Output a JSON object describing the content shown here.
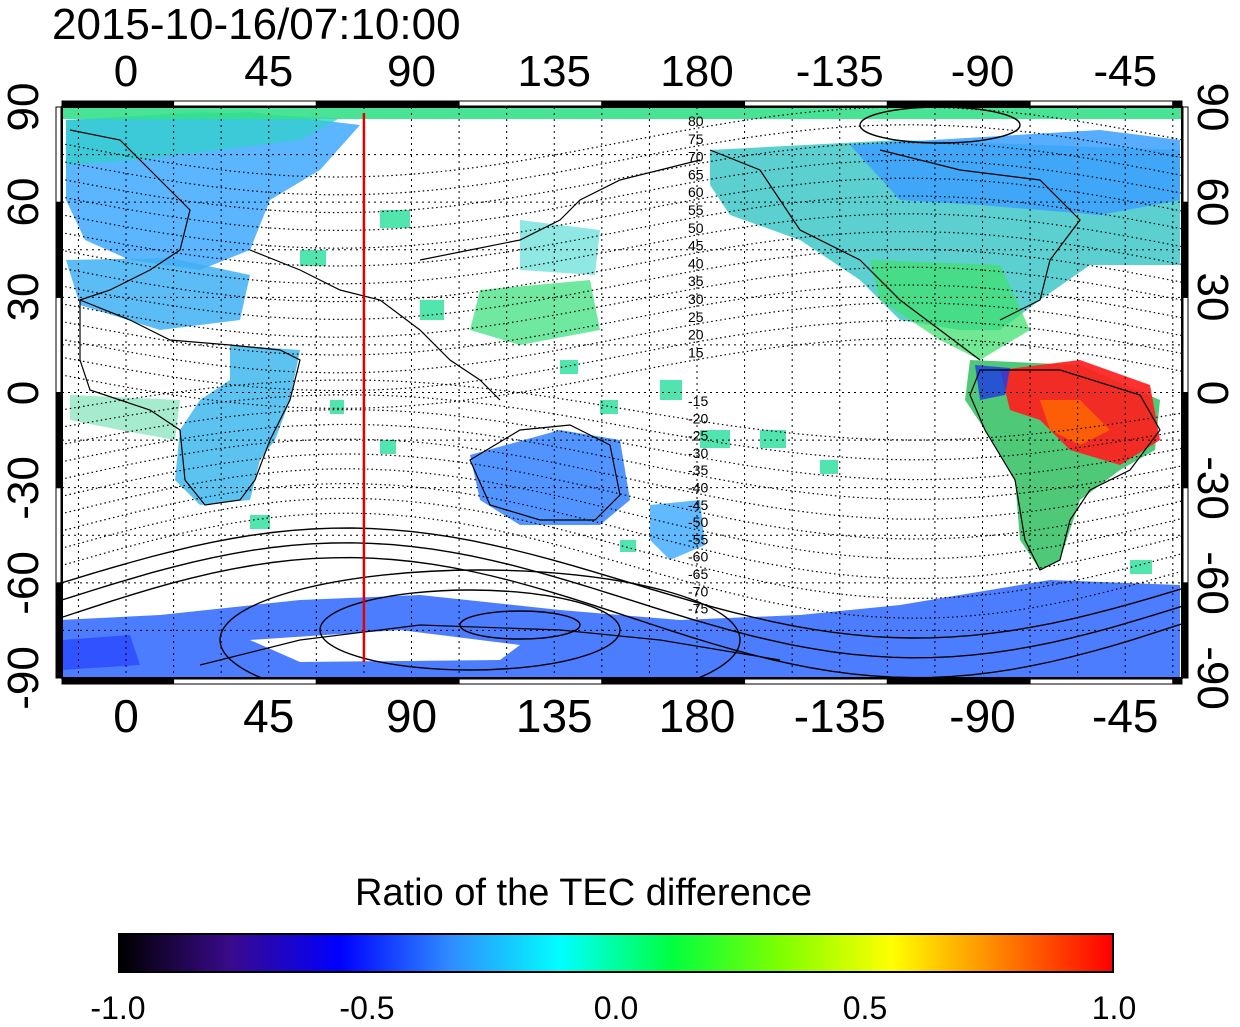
{
  "timestamp": "2015-10-16/07:10:00",
  "top_axis_labels": [
    "0",
    "45",
    "90",
    "135",
    "180",
    "-135",
    "-90",
    "-45"
  ],
  "bottom_axis_labels": [
    "0",
    "45",
    "90",
    "135",
    "180",
    "-135",
    "-90",
    "-45"
  ],
  "left_axis_labels": [
    "90",
    "60",
    "30",
    "0",
    "-30",
    "-60",
    "-90"
  ],
  "right_axis_labels": [
    "90",
    "60",
    "30",
    "0",
    "-30",
    "-60",
    "-90"
  ],
  "contour_labels": [
    "80",
    "75",
    "70",
    "65",
    "60",
    "55",
    "50",
    "45",
    "40",
    "35",
    "30",
    "25",
    "20",
    "15",
    "-15",
    "-20",
    "-25",
    "-30",
    "-35",
    "-40",
    "-45",
    "-50",
    "-55",
    "-60",
    "-65",
    "-70",
    "-75"
  ],
  "colorbar": {
    "title": "Ratio of the TEC difference",
    "ticks": [
      "-1.0",
      "-0.5",
      "0.0",
      "0.5",
      "1.0"
    ],
    "min": -1.0,
    "max": 1.0
  },
  "marker_line_longitude": 75,
  "colors": {
    "marker_line": "#e00000",
    "colorbar_stops": [
      "#000000",
      "#3a0a8c",
      "#0000ff",
      "#2f8cff",
      "#00ffff",
      "#00ff40",
      "#7fff00",
      "#ffff00",
      "#ff8000",
      "#ff0000"
    ]
  }
}
